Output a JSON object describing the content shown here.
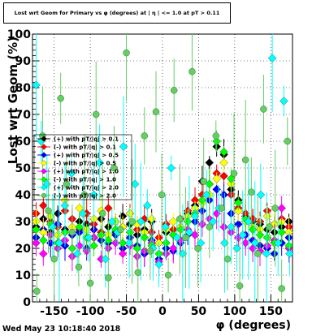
{
  "title": "Lost wrt Geom for Primary vs φ (degrees) at | η | <= 1.0 at pT > 0.11",
  "timestamp": "Wed May 23 10:18:40 2018",
  "chart_data": {
    "type": "scatter",
    "title": "Lost wrt Geom for Primary vs φ (degrees) at | η | <= 1.0 at pT > 0.11",
    "xlabel": "φ (degrees)",
    "ylabel": "Lost wrt Geom (%)",
    "xlim": [
      -180,
      180
    ],
    "ylim": [
      0,
      100
    ],
    "x_ticks": [
      -150,
      -100,
      -50,
      0,
      50,
      100,
      150
    ],
    "y_ticks": [
      0,
      10,
      20,
      30,
      40,
      50,
      60,
      70,
      80,
      90,
      100
    ],
    "grid": true,
    "legend_position": "middle-left",
    "series": [
      {
        "name": "(+) with pT/|q| > 0.1",
        "color": "#000000",
        "marker": "diamond",
        "x": [
          -175,
          -165,
          -155,
          -145,
          -135,
          -125,
          -115,
          -105,
          -95,
          -85,
          -75,
          -65,
          -55,
          -45,
          -35,
          -25,
          -15,
          -5,
          5,
          15,
          25,
          35,
          45,
          55,
          65,
          75,
          85,
          95,
          105,
          115,
          125,
          135,
          145,
          155,
          165,
          175
        ],
        "y": [
          28,
          31,
          26,
          33,
          27,
          25,
          30,
          29,
          24,
          31,
          28,
          26,
          32,
          29,
          25,
          27,
          30,
          22,
          26,
          25,
          28,
          33,
          36,
          45,
          52,
          58,
          55,
          42,
          38,
          32,
          30,
          29,
          27,
          26,
          28,
          30
        ]
      },
      {
        "name": "(-) with pT/|q| > 0.1",
        "color": "#ff0000",
        "marker": "diamond",
        "x": [
          -175,
          -165,
          -155,
          -145,
          -135,
          -125,
          -115,
          -105,
          -95,
          -85,
          -75,
          -65,
          -55,
          -45,
          -35,
          -25,
          -15,
          -5,
          5,
          15,
          25,
          35,
          45,
          55,
          65,
          75,
          85,
          95,
          105,
          115,
          125,
          135,
          145,
          155,
          165,
          175
        ],
        "y": [
          33,
          36,
          30,
          28,
          34,
          31,
          27,
          33,
          29,
          26,
          35,
          30,
          28,
          33,
          27,
          31,
          26,
          24,
          29,
          27,
          31,
          34,
          38,
          40,
          44,
          48,
          47,
          40,
          35,
          33,
          31,
          30,
          34,
          29,
          31,
          28
        ]
      },
      {
        "name": "(+) with pT/|q| > 0.5",
        "color": "#0000ff",
        "marker": "diamond",
        "x": [
          -175,
          -165,
          -155,
          -145,
          -135,
          -125,
          -115,
          -105,
          -95,
          -85,
          -75,
          -65,
          -55,
          -45,
          -35,
          -25,
          -15,
          -5,
          5,
          15,
          25,
          35,
          45,
          55,
          65,
          75,
          85,
          95,
          105,
          115,
          125,
          135,
          145,
          155,
          165,
          175
        ],
        "y": [
          24,
          27,
          22,
          29,
          21,
          25,
          26,
          20,
          27,
          23,
          22,
          25,
          20,
          24,
          21,
          18,
          23,
          16,
          20,
          19,
          22,
          25,
          30,
          34,
          38,
          42,
          40,
          33,
          29,
          25,
          23,
          21,
          20,
          18,
          22,
          24
        ]
      },
      {
        "name": "(-) with pT/|q| > 0.5",
        "color": "#ffff00",
        "marker": "diamond",
        "x": [
          -175,
          -165,
          -155,
          -145,
          -135,
          -125,
          -115,
          -105,
          -95,
          -85,
          -75,
          -65,
          -55,
          -45,
          -35,
          -25,
          -15,
          -5,
          5,
          15,
          25,
          35,
          45,
          55,
          65,
          75,
          85,
          95,
          105,
          115,
          125,
          135,
          145,
          155,
          165,
          175
        ],
        "y": [
          30,
          26,
          32,
          25,
          38,
          28,
          35,
          27,
          31,
          34,
          25,
          30,
          28,
          33,
          29,
          26,
          31,
          22,
          27,
          30,
          28,
          32,
          35,
          37,
          40,
          46,
          52,
          44,
          34,
          30,
          28,
          27,
          32,
          29,
          30,
          26
        ]
      },
      {
        "name": "(+) with pT/|q| > 1.0",
        "color": "#ff00ff",
        "marker": "diamond",
        "x": [
          -175,
          -165,
          -155,
          -145,
          -135,
          -125,
          -115,
          -105,
          -95,
          -85,
          -75,
          -65,
          -55,
          -45,
          -35,
          -25,
          -15,
          -5,
          5,
          15,
          25,
          35,
          45,
          55,
          65,
          75,
          85,
          95,
          105,
          115,
          125,
          135,
          145,
          155,
          165,
          175
        ],
        "y": [
          22,
          18,
          25,
          20,
          23,
          17,
          21,
          19,
          24,
          16,
          20,
          22,
          18,
          21,
          17,
          19,
          22,
          15,
          18,
          20,
          23,
          27,
          25,
          29,
          31,
          33,
          28,
          26,
          24,
          22,
          20,
          19,
          21,
          23,
          35,
          20
        ]
      },
      {
        "name": "(-) with pT/|q| > 1.0",
        "color": "#00ff00",
        "marker": "diamond",
        "x": [
          -175,
          -165,
          -155,
          -145,
          -135,
          -125,
          -115,
          -105,
          -95,
          -85,
          -75,
          -65,
          -55,
          -45,
          -35,
          -25,
          -15,
          -5,
          5,
          15,
          25,
          35,
          45,
          55,
          65,
          75,
          85,
          95,
          105,
          115,
          125,
          135,
          145,
          155,
          165,
          175
        ],
        "y": [
          27,
          23,
          29,
          22,
          26,
          20,
          28,
          24,
          21,
          25,
          23,
          27,
          22,
          26,
          20,
          24,
          21,
          18,
          22,
          25,
          27,
          30,
          33,
          38,
          44,
          60,
          56,
          46,
          37,
          31,
          27,
          25,
          24,
          22,
          26,
          21
        ]
      },
      {
        "name": "(+) with pT/|q| > 2.0",
        "color": "#00ffff",
        "marker": "diamond",
        "x": [
          -175,
          -168,
          -160,
          -152,
          -143,
          -135,
          -126,
          -118,
          -110,
          -102,
          -95,
          -87,
          -79,
          -70,
          -62,
          -54,
          -46,
          -38,
          -30,
          -21,
          -13,
          -5,
          4,
          12,
          20,
          28,
          37,
          45,
          53,
          61,
          70,
          78,
          86,
          95,
          103,
          111,
          119,
          128,
          136,
          144,
          152,
          160,
          168,
          176
        ],
        "y": [
          81,
          60,
          44,
          28,
          22,
          36,
          48,
          18,
          33,
          24,
          40,
          52,
          16,
          30,
          26,
          58,
          22,
          44,
          30,
          36,
          20,
          14,
          28,
          50,
          24,
          18,
          26,
          32,
          22,
          40,
          30,
          35,
          22,
          28,
          20,
          25,
          30,
          22,
          40,
          18,
          91,
          22,
          75,
          18
        ]
      },
      {
        "name": "(-) with pT/|q| > 2.0",
        "color": "#66cc66",
        "marker": "circle",
        "x": [
          -174,
          -166,
          -158,
          -150,
          -141,
          -133,
          -125,
          -116,
          -108,
          -100,
          -92,
          -83,
          -75,
          -67,
          -58,
          -50,
          -42,
          -34,
          -25,
          -17,
          -9,
          -1,
          8,
          16,
          24,
          32,
          41,
          49,
          57,
          65,
          74,
          82,
          90,
          99,
          107,
          115,
          123,
          132,
          140,
          148,
          156,
          165,
          173
        ],
        "y": [
          4,
          62,
          34,
          16,
          76,
          44,
          26,
          13,
          40,
          7,
          70,
          33,
          9,
          50,
          27,
          93,
          30,
          11,
          62,
          19,
          71,
          40,
          10,
          79,
          31,
          24,
          86,
          20,
          45,
          28,
          62,
          35,
          16,
          48,
          6,
          53,
          41,
          18,
          72,
          28,
          35,
          5,
          60
        ]
      }
    ]
  }
}
